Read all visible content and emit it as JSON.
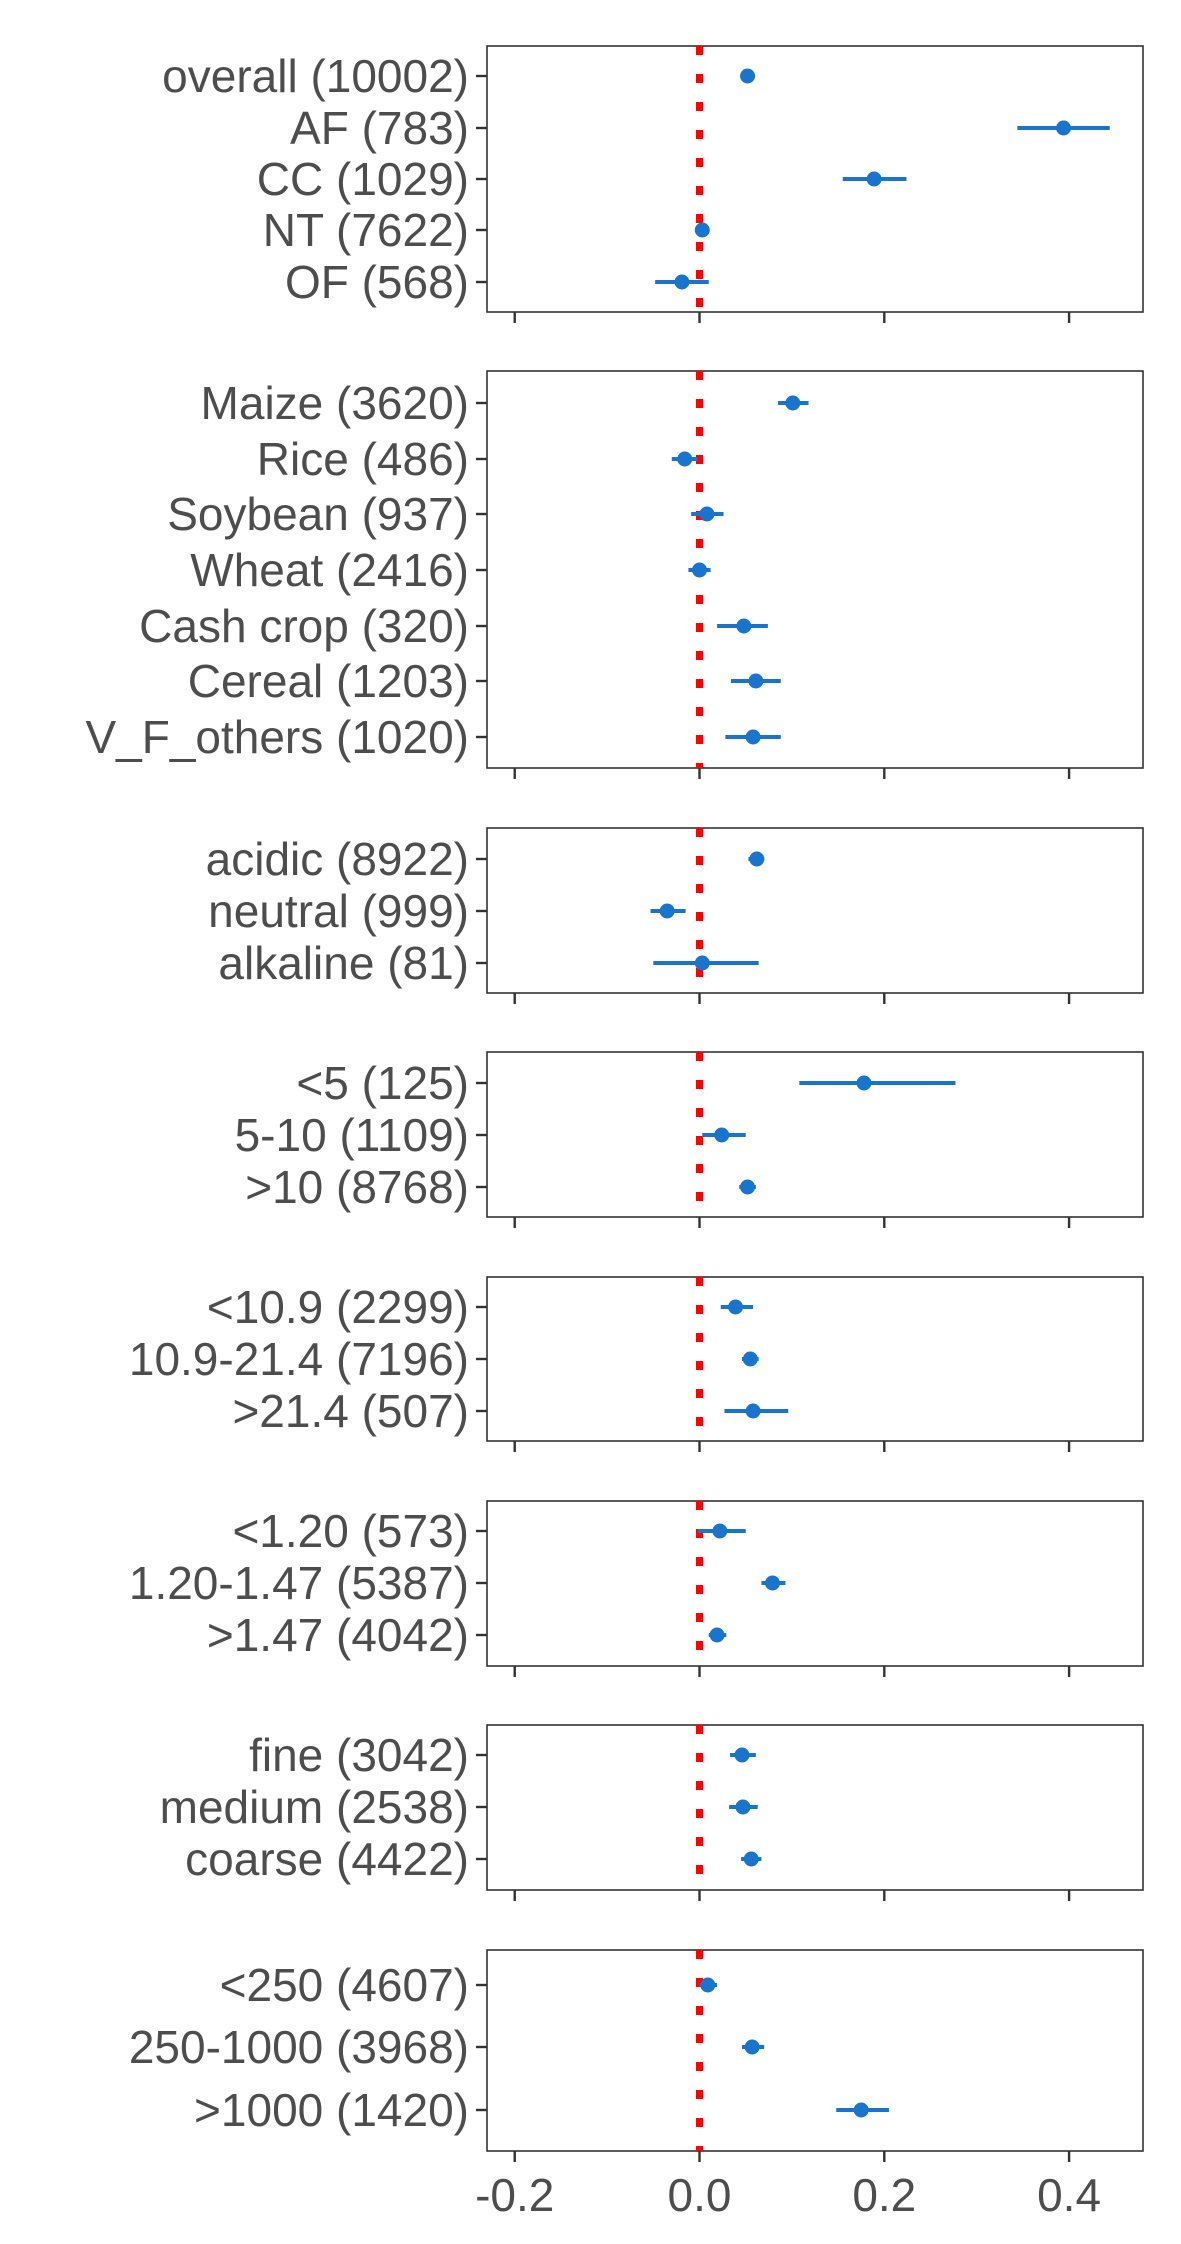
{
  "chart_data": {
    "type": "scatter",
    "title": "",
    "xlabel": "",
    "ylabel": "",
    "xlim": [
      -0.23,
      0.48
    ],
    "x_ticks": [
      -0.2,
      0.0,
      0.2,
      0.4
    ],
    "x_tick_labels": [
      "-0.2",
      "0.0",
      "0.2",
      "0.4"
    ],
    "reference_line": {
      "x": 0.0,
      "style": "dotted",
      "color": "#ff0000"
    },
    "point_color": "#1874cd",
    "grid": false,
    "legend": "none",
    "panels": [
      {
        "rows": [
          {
            "label": "overall (10002)",
            "estimate": 0.052,
            "ci_low": 0.045,
            "ci_high": 0.059
          },
          {
            "label": "AF (783)",
            "estimate": 0.394,
            "ci_low": 0.344,
            "ci_high": 0.444
          },
          {
            "label": "CC (1029)",
            "estimate": 0.189,
            "ci_low": 0.155,
            "ci_high": 0.224
          },
          {
            "label": "NT (7622)",
            "estimate": 0.003,
            "ci_low": -0.004,
            "ci_high": 0.01
          },
          {
            "label": "OF (568)",
            "estimate": -0.019,
            "ci_low": -0.048,
            "ci_high": 0.01
          }
        ]
      },
      {
        "rows": [
          {
            "label": "Maize (3620)",
            "estimate": 0.101,
            "ci_low": 0.085,
            "ci_high": 0.118
          },
          {
            "label": "Rice (486)",
            "estimate": -0.016,
            "ci_low": -0.03,
            "ci_high": -0.002
          },
          {
            "label": "Soybean (937)",
            "estimate": 0.008,
            "ci_low": -0.009,
            "ci_high": 0.026
          },
          {
            "label": "Wheat (2416)",
            "estimate": 0.0,
            "ci_low": -0.012,
            "ci_high": 0.012
          },
          {
            "label": "Cash crop (320)",
            "estimate": 0.048,
            "ci_low": 0.019,
            "ci_high": 0.074
          },
          {
            "label": "Cereal (1203)",
            "estimate": 0.061,
            "ci_low": 0.034,
            "ci_high": 0.088
          },
          {
            "label": "V_F_others (1020)",
            "estimate": 0.058,
            "ci_low": 0.028,
            "ci_high": 0.088
          }
        ]
      },
      {
        "rows": [
          {
            "label": "acidic (8922)",
            "estimate": 0.062,
            "ci_low": 0.053,
            "ci_high": 0.07
          },
          {
            "label": "neutral (999)",
            "estimate": -0.035,
            "ci_low": -0.053,
            "ci_high": -0.015
          },
          {
            "label": "alkaline (81)",
            "estimate": 0.003,
            "ci_low": -0.05,
            "ci_high": 0.064
          }
        ]
      },
      {
        "rows": [
          {
            "label": "<5 (125)",
            "estimate": 0.178,
            "ci_low": 0.108,
            "ci_high": 0.277
          },
          {
            "label": "5-10 (1109)",
            "estimate": 0.024,
            "ci_low": 0.003,
            "ci_high": 0.05
          },
          {
            "label": ">10 (8768)",
            "estimate": 0.052,
            "ci_low": 0.043,
            "ci_high": 0.061
          }
        ]
      },
      {
        "rows": [
          {
            "label": "<10.9 (2299)",
            "estimate": 0.039,
            "ci_low": 0.023,
            "ci_high": 0.058
          },
          {
            "label": "10.9-21.4 (7196)",
            "estimate": 0.055,
            "ci_low": 0.046,
            "ci_high": 0.064
          },
          {
            "label": ">21.4 (507)",
            "estimate": 0.058,
            "ci_low": 0.027,
            "ci_high": 0.096
          }
        ]
      },
      {
        "rows": [
          {
            "label": "<1.20 (573)",
            "estimate": 0.022,
            "ci_low": -0.002,
            "ci_high": 0.05
          },
          {
            "label": "1.20-1.47 (5387)",
            "estimate": 0.079,
            "ci_low": 0.067,
            "ci_high": 0.093
          },
          {
            "label": ">1.47 (4042)",
            "estimate": 0.019,
            "ci_low": 0.01,
            "ci_high": 0.029
          }
        ]
      },
      {
        "rows": [
          {
            "label": "fine (3042)",
            "estimate": 0.046,
            "ci_low": 0.033,
            "ci_high": 0.061
          },
          {
            "label": "medium (2538)",
            "estimate": 0.047,
            "ci_low": 0.032,
            "ci_high": 0.063
          },
          {
            "label": "coarse (4422)",
            "estimate": 0.056,
            "ci_low": 0.045,
            "ci_high": 0.067
          }
        ]
      },
      {
        "rows": [
          {
            "label": "<250 (4607)",
            "estimate": 0.009,
            "ci_low": 0.0,
            "ci_high": 0.019
          },
          {
            "label": "250-1000 (3968)",
            "estimate": 0.057,
            "ci_low": 0.046,
            "ci_high": 0.07
          },
          {
            "label": ">1000 (1420)",
            "estimate": 0.175,
            "ci_low": 0.148,
            "ci_high": 0.205
          }
        ]
      }
    ]
  }
}
